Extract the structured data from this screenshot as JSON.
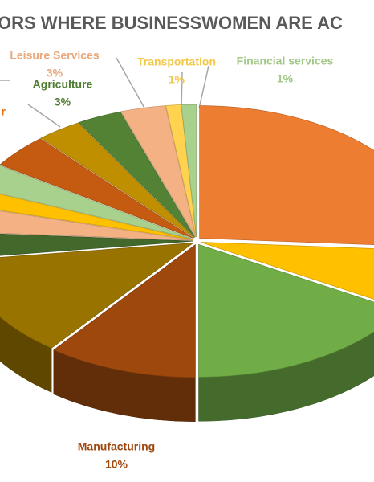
{
  "chart_data": {
    "type": "pie",
    "title": "ORS WHERE BUSINESSWOMEN ARE AC",
    "categories": [
      null,
      null,
      null,
      "Manufacturing",
      null,
      null,
      null,
      null,
      null,
      "r",
      null,
      "Agriculture",
      "Leisure Services",
      "Transportation",
      "Financial services"
    ],
    "values": [
      25,
      7,
      16,
      10,
      12,
      3,
      3,
      2,
      3,
      4,
      3,
      3,
      3,
      1,
      1
    ],
    "value_labels": [
      null,
      null,
      null,
      "10%",
      null,
      null,
      null,
      null,
      null,
      null,
      null,
      "3%",
      "3%",
      "1%",
      "1%"
    ],
    "colors": [
      "#ED7D31",
      "#FFC000",
      "#70AD47",
      "#9E480E",
      "#997300",
      "#43682B",
      "#F4B183",
      "#FFC000",
      "#A9D18E",
      "#C55A11",
      "#BF8F00",
      "#548235",
      "#F4B183",
      "#FFD34F",
      "#A9D18E"
    ]
  }
}
